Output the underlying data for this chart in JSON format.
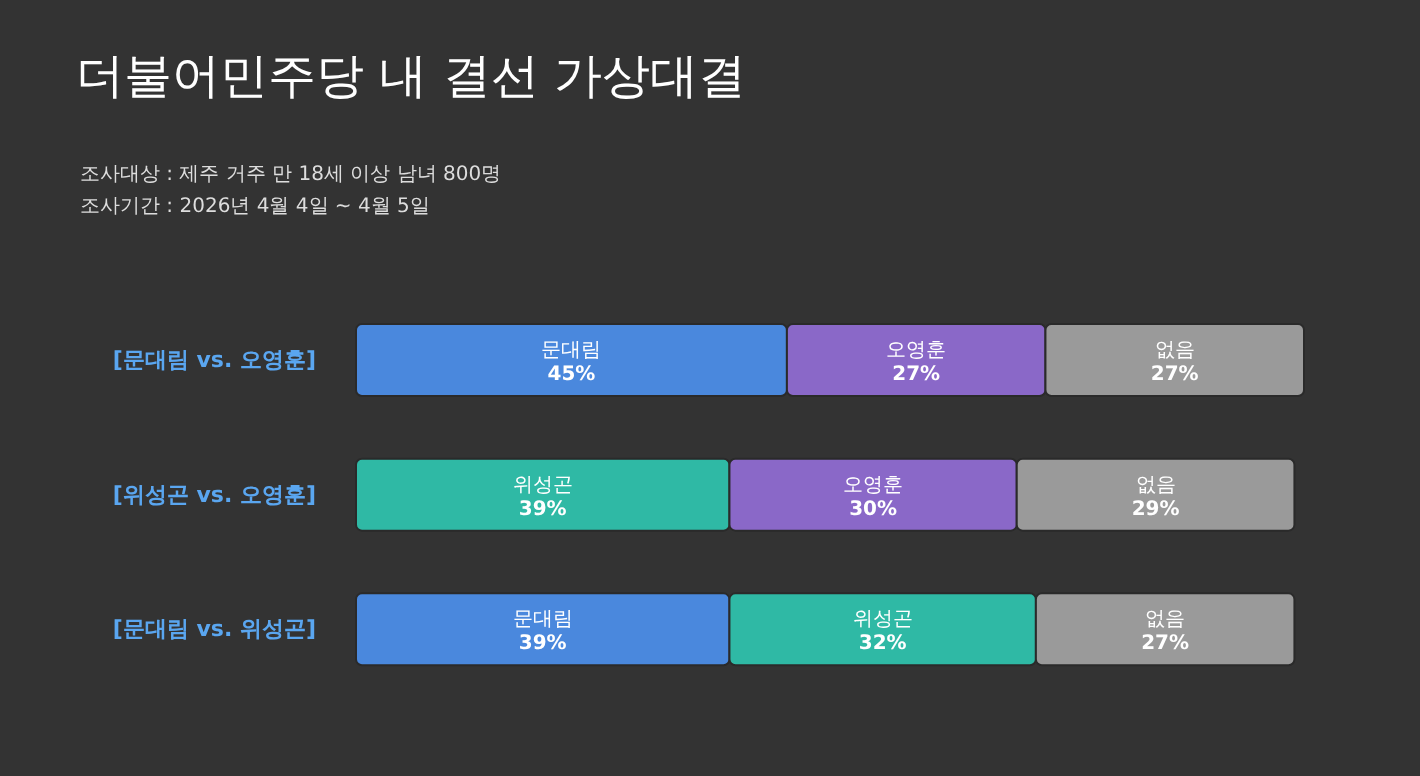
{
  "chart_data": {
    "type": "bar",
    "orientation": "horizontal",
    "stacked": true,
    "title": "더불어민주당 내 결선 가상대결",
    "annotations": [
      "조사대상 : 제주 거주 만 18세 이상 남녀 800명",
      "조사기간 : 2026년 4월 4일 ~ 4월 5일"
    ],
    "categories": [
      "[문대림 vs. 오영훈]",
      "[위성곤 vs. 오영훈]",
      "[문대림 vs. 위성곤]"
    ],
    "tick_labels": "y",
    "series": [
      {
        "name": "문대림",
        "color": "#4a88dd",
        "values": [
          45,
          null,
          39
        ],
        "value_labels": [
          "45%",
          null,
          "39%"
        ]
      },
      {
        "name": "위성곤",
        "color": "#2fb9a5",
        "values": [
          null,
          39,
          32
        ],
        "value_labels": [
          null,
          "39%",
          "32%"
        ]
      },
      {
        "name": "오영훈",
        "color": "#8a68c8",
        "values": [
          27,
          30,
          null
        ],
        "value_labels": [
          "27%",
          "30%",
          null
        ]
      },
      {
        "name": "없음",
        "color": "#9a9a9a",
        "values": [
          27,
          29,
          27
        ],
        "value_labels": [
          "27%",
          "29%",
          "27%"
        ]
      }
    ]
  }
}
